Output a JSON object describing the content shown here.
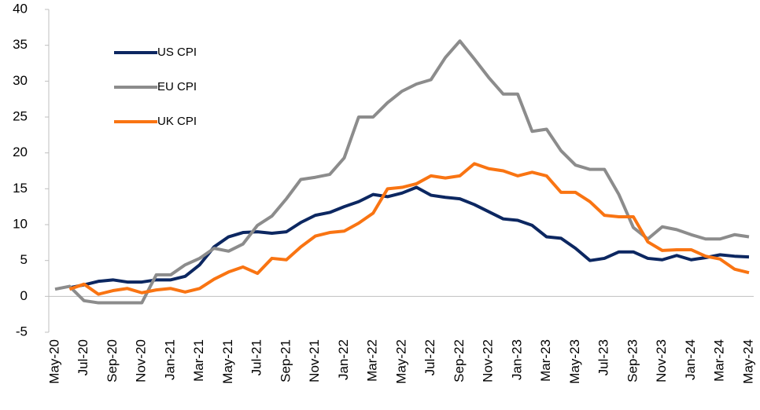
{
  "chart_data": {
    "type": "line",
    "categories": [
      "May-20",
      null,
      "Jul-20",
      null,
      "Sep-20",
      null,
      "Nov-20",
      null,
      "Jan-21",
      null,
      "Mar-21",
      null,
      "May-21",
      null,
      "Jul-21",
      null,
      "Sep-21",
      null,
      "Nov-21",
      null,
      "Jan-22",
      null,
      "Mar-22",
      null,
      "May-22",
      null,
      "Jul-22",
      null,
      "Sep-22",
      null,
      "Nov-22",
      null,
      "Jan-23",
      null,
      "Mar-23",
      null,
      "May-23",
      null,
      "Jul-23",
      null,
      "Sep-23",
      null,
      "Nov-23",
      null,
      "Jan-24",
      null,
      "Mar-24",
      null,
      "May-24"
    ],
    "series": [
      {
        "name": "US CPI",
        "color": "#0c2761",
        "values": [
          null,
          1.2,
          1.6,
          2.1,
          2.3,
          2.0,
          2.0,
          2.3,
          2.3,
          2.8,
          4.4,
          6.9,
          8.3,
          8.9,
          9.0,
          8.8,
          9.0,
          10.3,
          11.3,
          11.7,
          12.5,
          13.2,
          14.2,
          13.9,
          14.4,
          15.2,
          14.1,
          13.8,
          13.6,
          12.8,
          11.8,
          10.8,
          10.6,
          9.9,
          8.3,
          8.1,
          6.7,
          5.0,
          5.3,
          6.2,
          6.2,
          5.3,
          5.1,
          5.7,
          5.1,
          5.4,
          5.8,
          5.6,
          5.5
        ]
      },
      {
        "name": "EU CPI",
        "color": "#8c8c8c",
        "values": [
          1.0,
          1.4,
          -0.6,
          -0.9,
          -0.9,
          -0.9,
          -0.9,
          3.0,
          3.0,
          4.4,
          5.3,
          6.7,
          6.3,
          7.3,
          9.9,
          11.2,
          13.6,
          16.3,
          16.6,
          17.0,
          19.3,
          25.0,
          25.0,
          27.0,
          28.6,
          29.6,
          30.2,
          33.3,
          35.6,
          33.1,
          30.5,
          28.2,
          28.2,
          23.0,
          23.3,
          20.3,
          18.3,
          17.7,
          17.7,
          14.2,
          9.6,
          8.0,
          9.7,
          9.3,
          8.6,
          8.0,
          8.0,
          8.6,
          8.3
        ]
      },
      {
        "name": "UK CPI",
        "color": "#f97412",
        "values": [
          null,
          1.0,
          1.7,
          0.3,
          0.8,
          1.1,
          0.5,
          0.9,
          1.1,
          0.6,
          1.1,
          2.4,
          3.4,
          4.1,
          3.2,
          5.3,
          5.1,
          6.9,
          8.4,
          8.9,
          9.1,
          10.2,
          11.6,
          15.0,
          15.2,
          15.7,
          16.8,
          16.5,
          16.8,
          18.5,
          17.8,
          17.5,
          16.8,
          17.3,
          16.8,
          14.5,
          14.5,
          13.2,
          11.3,
          11.1,
          11.1,
          7.6,
          6.4,
          6.5,
          6.5,
          5.6,
          5.2,
          3.8,
          3.3
        ]
      }
    ],
    "ylim": [
      -5,
      40
    ],
    "yticks": [
      -5,
      0,
      5,
      10,
      15,
      20,
      25,
      30,
      35,
      40
    ],
    "legend": "upper left"
  }
}
